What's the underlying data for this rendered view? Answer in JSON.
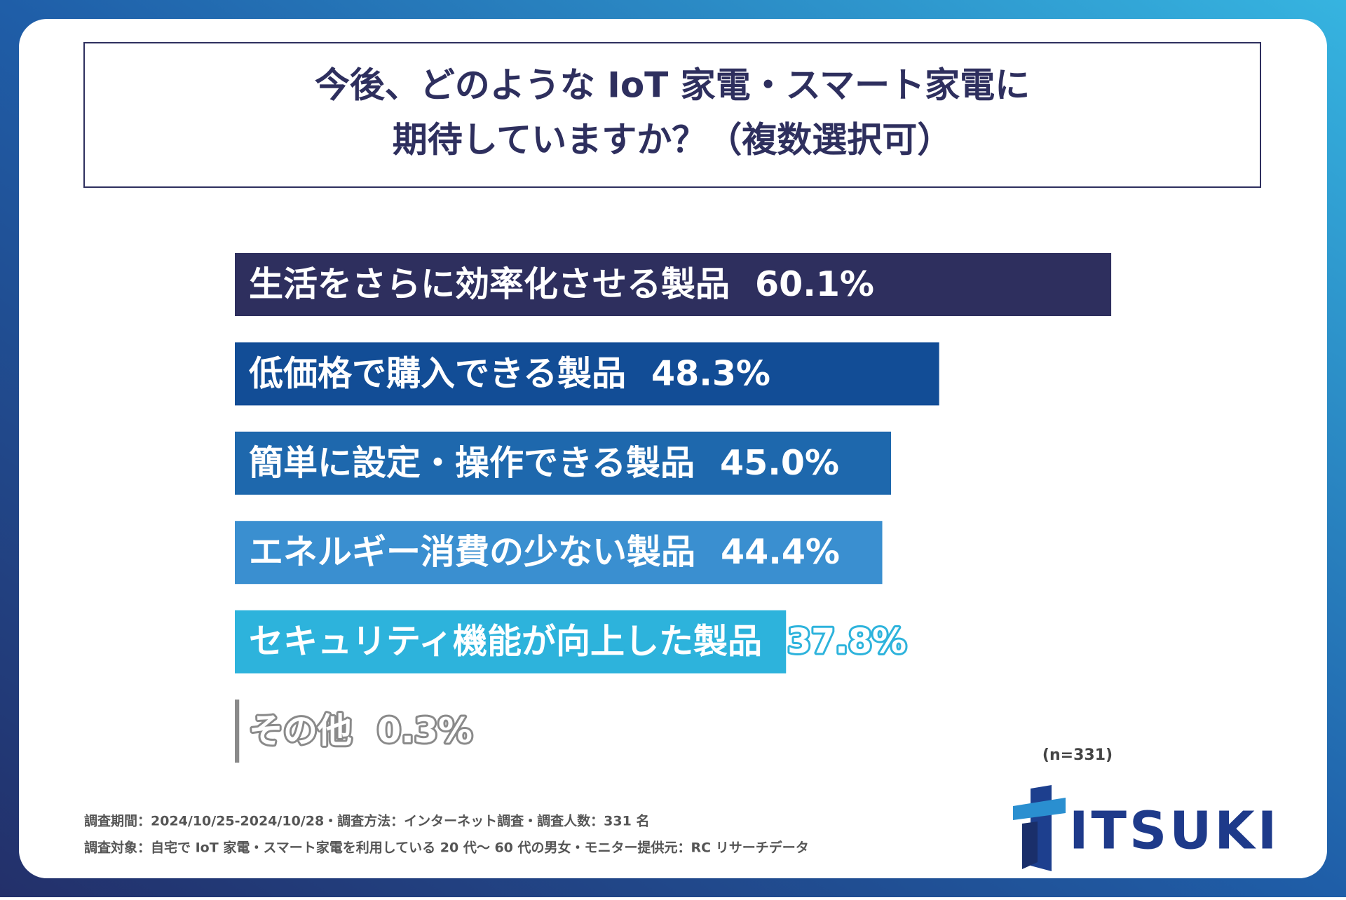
{
  "chart_data": {
    "type": "bar",
    "orientation": "horizontal",
    "title": [
      "今後、どのような IoT 家電・スマート家電に",
      "期待していますか？（複数選択可）"
    ],
    "categories": [
      "生活をさらに効率化させる製品",
      "低価格で購入できる製品",
      "簡単に設定・操作できる製品",
      "エネルギー消費の少ない製品",
      "セキュリティ機能が向上した製品",
      "その他"
    ],
    "values": [
      60.1,
      48.3,
      45.0,
      44.4,
      37.8,
      0.3
    ],
    "value_labels": [
      "60.1%",
      "48.3%",
      "45.0%",
      "44.4%",
      "37.8%",
      "0.3%"
    ],
    "colors": [
      "#2e2f5e",
      "#124d96",
      "#1e68ad",
      "#3a8fd0",
      "#2db3dc",
      "#8a8a8a"
    ],
    "xlim": [
      0,
      70
    ],
    "sample_note": "(n=331)",
    "footnotes": [
      "調査期間：2024/10/25-2024/10/28・調査方法：インターネット調査・調査人数：331 名",
      "調査対象：自宅で IoT 家電・スマート家電を利用している 20 代〜 60 代の男女・モニター提供元：RC リサーチデータ"
    ],
    "logo": "ITSUKI"
  }
}
